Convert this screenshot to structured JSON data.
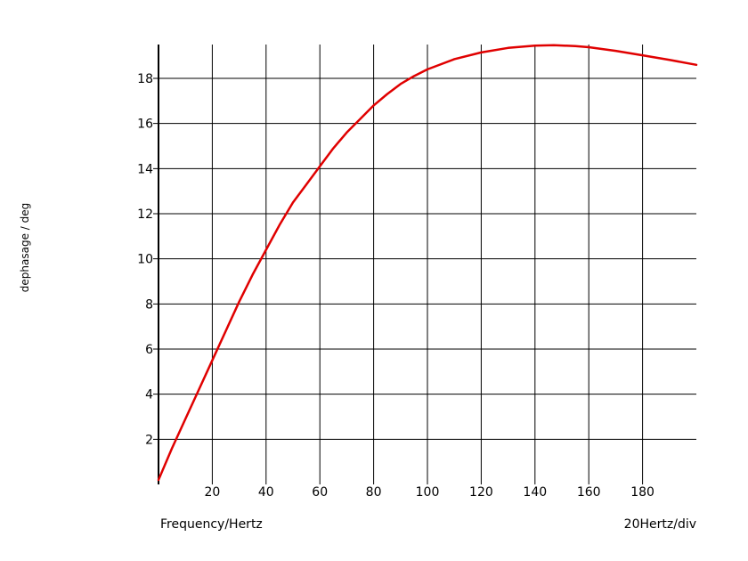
{
  "chart_data": {
    "type": "line",
    "xlabel": "Frequency/Hertz",
    "ylabel": "dephasage / deg",
    "scale_label": "20Hertz/div",
    "xlim": [
      0,
      200
    ],
    "ylim": [
      0,
      19.5
    ],
    "grid": true,
    "x_ticks": [
      20,
      40,
      60,
      80,
      100,
      120,
      140,
      160,
      180
    ],
    "y_ticks": [
      2,
      4,
      6,
      8,
      10,
      12,
      14,
      16,
      18
    ],
    "series": [
      {
        "color": "#e00000",
        "x": [
          0,
          5,
          10,
          15,
          20,
          25,
          30,
          35,
          40,
          45,
          50,
          55,
          60,
          65,
          70,
          75,
          80,
          85,
          90,
          95,
          100,
          110,
          120,
          130,
          140,
          147,
          155,
          160,
          170,
          180,
          190,
          200
        ],
        "y": [
          0.2,
          1.6,
          2.9,
          4.2,
          5.5,
          6.8,
          8.1,
          9.3,
          10.4,
          11.5,
          12.5,
          13.3,
          14.1,
          14.9,
          15.6,
          16.2,
          16.8,
          17.3,
          17.75,
          18.1,
          18.4,
          18.85,
          19.15,
          19.35,
          19.45,
          19.47,
          19.43,
          19.38,
          19.22,
          19.02,
          18.82,
          18.6
        ]
      }
    ]
  }
}
